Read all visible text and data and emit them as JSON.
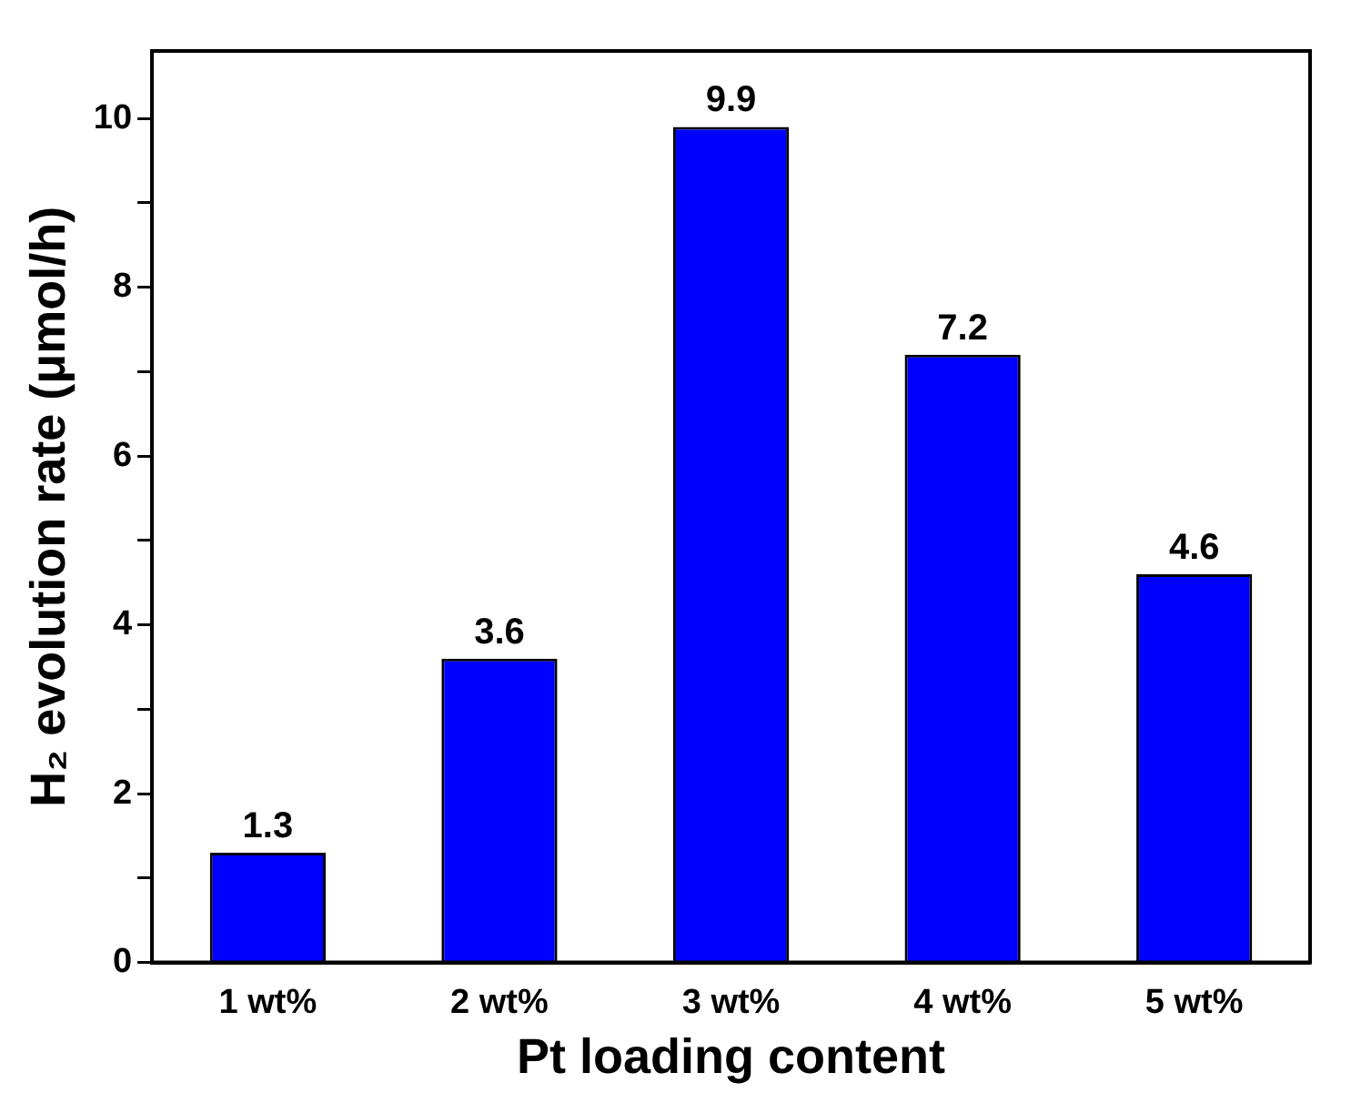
{
  "chart_data": {
    "type": "bar",
    "xlabel": "Pt loading content",
    "ylabel": "H₂ evolution rate (μmol/h)",
    "categories": [
      "1 wt%",
      "2 wt%",
      "3 wt%",
      "4 wt%",
      "5 wt%"
    ],
    "values": [
      1.3,
      3.6,
      9.9,
      7.2,
      4.6
    ],
    "color": "#0000ff",
    "ylim": [
      0,
      10.8
    ],
    "yticks": [
      0,
      {
        "value": 1,
        "label": null
      },
      2,
      {
        "value": 3,
        "label": null
      },
      4,
      {
        "value": 5,
        "label": null
      },
      6,
      {
        "value": 7,
        "label": null
      },
      8,
      {
        "value": 9,
        "label": null
      },
      10
    ],
    "grid": false,
    "legend": false,
    "data_labels": true
  }
}
